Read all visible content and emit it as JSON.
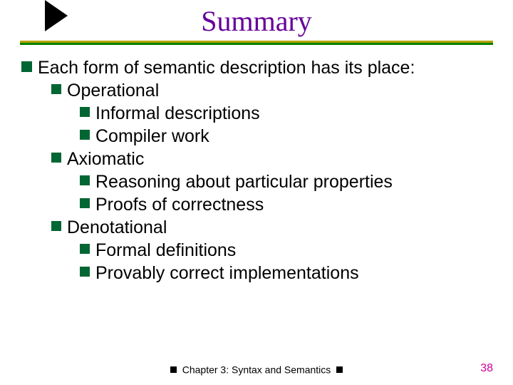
{
  "title": {
    "text": "Summary",
    "color": "#660099"
  },
  "bullet": {
    "lvl1_color": "#006633",
    "lvl2_color": "#006633",
    "lvl3_color": "#006633"
  },
  "content": {
    "main": "Each form of semantic description has its place:",
    "items": [
      {
        "label": "Operational",
        "sub": [
          "Informal descriptions",
          "Compiler work"
        ]
      },
      {
        "label": "Axiomatic",
        "sub": [
          "Reasoning about particular properties",
          "Proofs of correctness"
        ]
      },
      {
        "label": "Denotational",
        "sub": [
          "Formal definitions",
          "Provably correct implementations"
        ]
      }
    ]
  },
  "footer": {
    "text": "Chapter 3: Syntax and Semantics"
  },
  "page_number": {
    "value": "38",
    "color": "#cc0099"
  }
}
